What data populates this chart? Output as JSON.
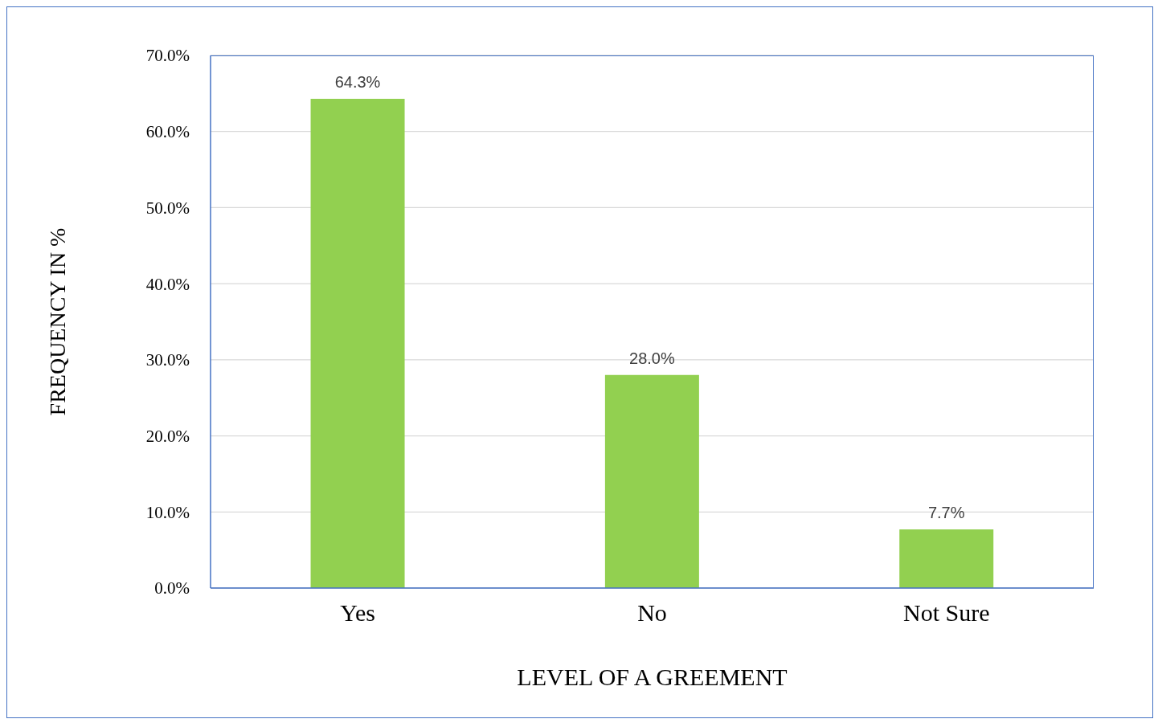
{
  "chart_data": {
    "type": "bar",
    "xlabel": "LEVEL OF A GREEMENT",
    "ylabel": "FREQUENCY  IN %",
    "categories": [
      "Yes",
      "No",
      "Not Sure"
    ],
    "values": [
      64.3,
      28.0,
      7.7
    ],
    "value_labels": [
      "64.3%",
      "28.0%",
      "7.7%"
    ],
    "color": "#92d050",
    "ylim": [
      0,
      70
    ],
    "yticks": [
      {
        "value": 0,
        "label": "0.0%"
      },
      {
        "value": 10,
        "label": "10.0%"
      },
      {
        "value": 20,
        "label": "20.0%"
      },
      {
        "value": 30,
        "label": "30.0%"
      },
      {
        "value": 40,
        "label": "40.0%"
      },
      {
        "value": 50,
        "label": "50.0%"
      },
      {
        "value": 60,
        "label": "60.0%"
      },
      {
        "value": 70,
        "label": "70.0%"
      }
    ],
    "grid": "y"
  }
}
